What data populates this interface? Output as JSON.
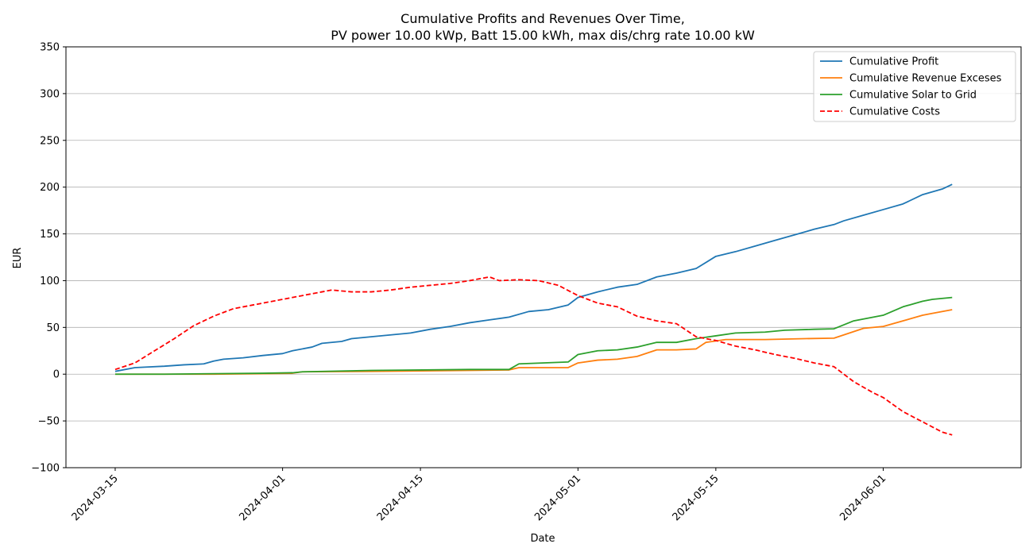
{
  "chart_data": {
    "type": "line",
    "title": "Cumulative Profits and Revenues Over Time,",
    "subtitle": "PV power 10.00 kWp, Batt 15.00 kWh, max dis/chrg rate 10.00 kW",
    "xlabel": "Date",
    "ylabel": "EUR",
    "x_range": [
      "2024-03-10",
      "2024-06-15"
    ],
    "ylim": [
      -100,
      350
    ],
    "y_ticks": [
      -100,
      -50,
      0,
      50,
      100,
      150,
      200,
      250,
      300,
      350
    ],
    "y_tick_labels": [
      "−100",
      "−50",
      "0",
      "50",
      "100",
      "150",
      "200",
      "250",
      "300",
      "350"
    ],
    "x_ticks": [
      "2024-03-15",
      "2024-04-01",
      "2024-04-15",
      "2024-05-01",
      "2024-05-15",
      "2024-06-01"
    ],
    "grid": "horizontal",
    "legend_position": "top-right",
    "series": [
      {
        "name": "Cumulative Profit",
        "color": "#1f77b4",
        "style": "solid",
        "x": [
          "2024-03-15",
          "2024-03-17",
          "2024-03-18",
          "2024-03-20",
          "2024-03-22",
          "2024-03-24",
          "2024-03-25",
          "2024-03-26",
          "2024-03-28",
          "2024-03-30",
          "2024-04-01",
          "2024-04-02",
          "2024-04-04",
          "2024-04-05",
          "2024-04-07",
          "2024-04-08",
          "2024-04-10",
          "2024-04-12",
          "2024-04-14",
          "2024-04-16",
          "2024-04-18",
          "2024-04-20",
          "2024-04-22",
          "2024-04-24",
          "2024-04-26",
          "2024-04-28",
          "2024-04-30",
          "2024-05-01",
          "2024-05-03",
          "2024-05-05",
          "2024-05-07",
          "2024-05-09",
          "2024-05-11",
          "2024-05-13",
          "2024-05-15",
          "2024-05-17",
          "2024-05-19",
          "2024-05-21",
          "2024-05-23",
          "2024-05-25",
          "2024-05-27",
          "2024-05-28",
          "2024-05-30",
          "2024-06-01",
          "2024-06-03",
          "2024-06-05",
          "2024-06-07",
          "2024-06-08"
        ],
        "y": [
          3,
          7,
          7.5,
          8.5,
          10,
          11,
          14,
          16,
          17.5,
          20,
          22,
          25,
          29,
          33,
          35,
          38,
          40,
          42,
          44,
          48,
          51,
          55,
          58,
          61,
          67,
          69,
          74,
          82,
          88,
          93,
          96,
          104,
          108,
          113,
          126,
          131,
          137,
          143,
          149,
          155,
          160,
          164,
          170,
          176,
          182,
          192,
          198,
          203
        ]
      },
      {
        "name": "Cumulative Revenue Exceses",
        "color": "#ff7f0e",
        "style": "solid",
        "x": [
          "2024-03-15",
          "2024-03-20",
          "2024-03-25",
          "2024-03-30",
          "2024-04-02",
          "2024-04-03",
          "2024-04-10",
          "2024-04-20",
          "2024-04-24",
          "2024-04-25",
          "2024-04-30",
          "2024-05-01",
          "2024-05-03",
          "2024-05-05",
          "2024-05-07",
          "2024-05-09",
          "2024-05-11",
          "2024-05-13",
          "2024-05-14",
          "2024-05-16",
          "2024-05-20",
          "2024-05-24",
          "2024-05-27",
          "2024-05-30",
          "2024-06-01",
          "2024-06-03",
          "2024-06-05",
          "2024-06-06",
          "2024-06-08"
        ],
        "y": [
          0,
          0,
          0,
          0.5,
          1,
          2.5,
          3,
          4,
          4.5,
          7,
          7,
          12,
          15,
          16,
          19,
          26,
          26,
          27,
          34,
          37,
          37,
          38,
          38.5,
          49,
          51,
          57,
          63,
          65,
          69
        ]
      },
      {
        "name": "Cumulative Solar to Grid",
        "color": "#2ca02c",
        "style": "solid",
        "x": [
          "2024-03-15",
          "2024-03-20",
          "2024-03-25",
          "2024-03-30",
          "2024-04-02",
          "2024-04-03",
          "2024-04-10",
          "2024-04-20",
          "2024-04-24",
          "2024-04-25",
          "2024-04-30",
          "2024-05-01",
          "2024-05-03",
          "2024-05-05",
          "2024-05-07",
          "2024-05-09",
          "2024-05-11",
          "2024-05-13",
          "2024-05-15",
          "2024-05-17",
          "2024-05-20",
          "2024-05-22",
          "2024-05-25",
          "2024-05-27",
          "2024-05-29",
          "2024-06-01",
          "2024-06-03",
          "2024-06-05",
          "2024-06-06",
          "2024-06-08"
        ],
        "y": [
          0,
          0,
          0.5,
          1,
          1.5,
          2.5,
          4,
          5,
          5,
          11,
          13,
          21,
          25,
          26,
          29,
          34,
          34,
          38,
          41,
          44,
          45,
          47,
          48,
          48.5,
          57,
          63,
          72,
          78,
          80,
          82
        ]
      },
      {
        "name": "Cumulative Costs",
        "color": "#ff0000",
        "style": "dashed",
        "x": [
          "2024-03-15",
          "2024-03-17",
          "2024-03-19",
          "2024-03-21",
          "2024-03-23",
          "2024-03-25",
          "2024-03-27",
          "2024-03-29",
          "2024-03-31",
          "2024-04-02",
          "2024-04-04",
          "2024-04-06",
          "2024-04-08",
          "2024-04-10",
          "2024-04-12",
          "2024-04-14",
          "2024-04-16",
          "2024-04-18",
          "2024-04-20",
          "2024-04-22",
          "2024-04-23",
          "2024-04-25",
          "2024-04-27",
          "2024-04-29",
          "2024-05-01",
          "2024-05-03",
          "2024-05-05",
          "2024-05-07",
          "2024-05-09",
          "2024-05-11",
          "2024-05-13",
          "2024-05-15",
          "2024-05-17",
          "2024-05-19",
          "2024-05-21",
          "2024-05-23",
          "2024-05-25",
          "2024-05-27",
          "2024-05-29",
          "2024-05-31",
          "2024-06-01",
          "2024-06-03",
          "2024-06-05",
          "2024-06-07",
          "2024-06-08"
        ],
        "y": [
          5,
          12,
          25,
          38,
          52,
          62,
          70,
          74,
          78,
          82,
          86,
          90,
          88,
          88,
          90,
          93,
          95,
          97,
          100,
          104,
          100,
          101,
          100,
          95,
          84,
          76,
          72,
          62,
          57,
          54,
          40,
          36,
          30,
          26,
          21,
          17,
          12,
          8,
          -8,
          -20,
          -25,
          -40,
          -51,
          -62,
          -65
        ]
      }
    ]
  }
}
